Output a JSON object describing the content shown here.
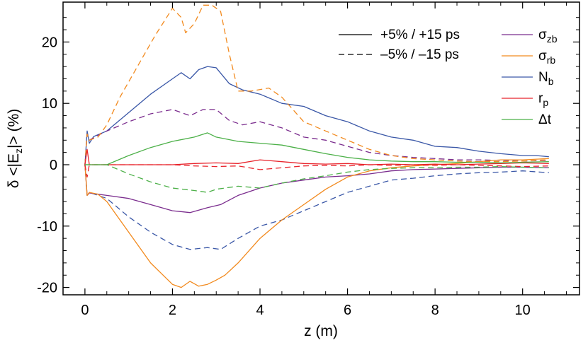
{
  "chart_data": {
    "type": "line",
    "xlabel": "z (m)",
    "ylabel_parts": [
      "δ <|E",
      "z",
      "|> (%)"
    ],
    "xlim": [
      -0.5,
      11.3
    ],
    "ylim": [
      -21.2,
      26.5
    ],
    "xticks": [
      0,
      2,
      4,
      6,
      8,
      10
    ],
    "yticks": [
      -20,
      -10,
      0,
      10,
      20
    ],
    "xtick_labels": [
      "0",
      "2",
      "4",
      "6",
      "8",
      "10"
    ],
    "ytick_labels": [
      "-20",
      "-10",
      "0",
      "10",
      "20"
    ],
    "grid": false,
    "legend_position": "top-right",
    "style_legend": [
      {
        "label": "+5% / +15 ps",
        "dash": "solid"
      },
      {
        "label": "–5% / –15 ps",
        "dash": "dashed"
      }
    ],
    "series_legend": [
      {
        "base": "σ",
        "sub": "zb",
        "color": "#7b2d8e"
      },
      {
        "base": "σ",
        "sub": "rb",
        "color": "#f28a1e"
      },
      {
        "base": "N",
        "sub": "b",
        "color": "#3a57a7"
      },
      {
        "base": "r",
        "sub": "p",
        "color": "#e8242c"
      },
      {
        "base": "Δt",
        "sub": "",
        "color": "#4cb048"
      }
    ],
    "series": [
      {
        "param": "N_b",
        "variation": "+5%",
        "color": "#3a57a7",
        "dash": "solid",
        "x": [
          0,
          0.05,
          0.1,
          0.2,
          0.5,
          1,
          1.5,
          2,
          2.2,
          2.4,
          2.6,
          2.8,
          3,
          3.3,
          3.6,
          4,
          4.5,
          5,
          5.5,
          6,
          6.5,
          7,
          7.5,
          8,
          8.5,
          9,
          9.5,
          10,
          10.3,
          10.6
        ],
        "y": [
          0,
          5.5,
          3.5,
          4.6,
          5.5,
          8.5,
          11.5,
          14,
          15,
          14,
          15.5,
          16,
          15.8,
          13.2,
          12.2,
          11.5,
          10,
          9.5,
          8,
          7,
          5.5,
          4.5,
          4,
          3,
          2.8,
          2.2,
          1.8,
          1.5,
          1.5,
          1.3
        ]
      },
      {
        "param": "N_b",
        "variation": "-5%",
        "color": "#3a57a7",
        "dash": "dashed",
        "x": [
          0,
          0.05,
          0.1,
          0.3,
          0.5,
          1,
          1.5,
          2,
          2.4,
          2.8,
          3.1,
          3.5,
          4,
          4.5,
          5,
          5.5,
          6,
          6.5,
          7,
          7.5,
          8,
          8.5,
          9,
          9.5,
          10,
          10.6
        ],
        "y": [
          0,
          -5,
          -4.5,
          -5,
          -5.5,
          -8.5,
          -11,
          -13,
          -13.8,
          -13.5,
          -13.8,
          -12,
          -10,
          -9,
          -7.5,
          -6,
          -4.5,
          -3.5,
          -2.5,
          -2.2,
          -1.8,
          -1.5,
          -1.3,
          -1.2,
          -1,
          -1.3
        ]
      },
      {
        "param": "σ_zb",
        "variation": "+5%",
        "color": "#7b2d8e",
        "dash": "solid",
        "x": [
          0,
          0.05,
          0.1,
          0.3,
          0.5,
          1,
          1.5,
          2,
          2.4,
          2.8,
          3.1,
          3.5,
          4,
          4.5,
          5,
          5.5,
          6,
          6.5,
          7,
          7.5,
          8,
          8.5,
          9,
          9.5,
          10,
          10.6
        ],
        "y": [
          0,
          -5,
          -4.6,
          -4.8,
          -5,
          -5.5,
          -6.5,
          -7.5,
          -7.8,
          -7,
          -6.5,
          -5,
          -3.8,
          -3,
          -2.5,
          -2,
          -1.8,
          -1.5,
          -1,
          -0.8,
          -0.7,
          -0.6,
          -0.5,
          -0.4,
          -0.4,
          -0.5
        ]
      },
      {
        "param": "σ_zb",
        "variation": "-5%",
        "color": "#7b2d8e",
        "dash": "dashed",
        "x": [
          0,
          0.05,
          0.1,
          0.3,
          0.5,
          1,
          1.5,
          2,
          2.2,
          2.4,
          2.7,
          3,
          3.3,
          3.6,
          4,
          4.5,
          5,
          5.5,
          6,
          6.5,
          7,
          7.5,
          8,
          8.5,
          9,
          9.5,
          10,
          10.6
        ],
        "y": [
          0,
          5,
          4,
          4.8,
          5.5,
          7,
          8.3,
          9,
          8.5,
          8,
          9,
          9,
          7.2,
          6.5,
          7,
          6,
          4.5,
          4,
          3,
          2,
          1.5,
          1.2,
          1,
          0.8,
          0.8,
          0.7,
          0.6,
          0.7
        ]
      },
      {
        "param": "σ_rb",
        "variation": "+5%",
        "color": "#f28a1e",
        "dash": "solid",
        "x": [
          0,
          0.05,
          0.1,
          0.3,
          0.5,
          1,
          1.5,
          2,
          2.2,
          2.4,
          2.6,
          2.8,
          3,
          3.2,
          3.5,
          4,
          4.5,
          5,
          5.5,
          6,
          6.5,
          7,
          7.5,
          8,
          8.5,
          9,
          9.5,
          10,
          10.6
        ],
        "y": [
          0,
          -5,
          -4.5,
          -4.8,
          -6,
          -11,
          -16,
          -19.5,
          -20,
          -19,
          -19.8,
          -19.5,
          -18.8,
          -18,
          -16,
          -12,
          -9,
          -6.5,
          -4,
          -2,
          -1,
          -0.5,
          -0.2,
          0,
          0.2,
          0.5,
          0.8,
          0.8,
          1
        ]
      },
      {
        "param": "σ_rb",
        "variation": "-5%",
        "color": "#f28a1e",
        "dash": "dashed",
        "x": [
          0,
          0.05,
          0.1,
          0.3,
          0.5,
          0.8,
          1.2,
          1.6,
          2,
          2.2,
          2.3,
          2.5,
          2.7,
          2.9,
          3.1,
          3.3,
          3.5,
          3.8,
          4.2,
          4.5,
          5,
          5.5,
          6,
          6.5,
          7,
          7.5,
          8,
          8.5,
          9,
          9.5,
          10,
          10.6
        ],
        "y": [
          0,
          5,
          4,
          4.5,
          6.5,
          11,
          16,
          21,
          25.5,
          24,
          21.5,
          23,
          26,
          26,
          25,
          18,
          12,
          12,
          12.5,
          11,
          7,
          5.5,
          4,
          2.5,
          1.5,
          1,
          0.8,
          0.6,
          0.5,
          0.5,
          0.6,
          0.8
        ]
      },
      {
        "param": "r_p",
        "variation": "+5%",
        "color": "#e8242c",
        "dash": "solid",
        "x": [
          0,
          0.05,
          0.1,
          0.2,
          0.3,
          0.5,
          1,
          1.5,
          2,
          2.5,
          3,
          3.5,
          4,
          4.5,
          5,
          5.5,
          6,
          6.5,
          7,
          7.5,
          8,
          8.5,
          9,
          9.5,
          10,
          10.6
        ],
        "y": [
          0,
          2.5,
          0,
          0,
          0,
          0,
          0,
          0,
          0,
          0.2,
          0.3,
          0.2,
          0.8,
          0.5,
          0.2,
          0.1,
          0.2,
          0,
          0.1,
          0,
          0.1,
          0,
          0.1,
          0.2,
          0.3,
          0.2
        ]
      },
      {
        "param": "r_p",
        "variation": "-5%",
        "color": "#e8242c",
        "dash": "dashed",
        "x": [
          0,
          0.05,
          0.1,
          0.2,
          0.3,
          0.5,
          1,
          1.5,
          2,
          2.5,
          3,
          3.5,
          4,
          4.5,
          5,
          5.5,
          6,
          6.5,
          7,
          7.5,
          8,
          8.5,
          9,
          9.5,
          10,
          10.6
        ],
        "y": [
          0,
          -2,
          0,
          0,
          0,
          0,
          0,
          0,
          0,
          -0.2,
          -0.3,
          -0.2,
          -0.8,
          -0.5,
          -0.2,
          -0.1,
          -0.2,
          0,
          -0.1,
          0,
          -0.1,
          0,
          -0.1,
          -0.2,
          -0.3,
          -0.2
        ]
      },
      {
        "param": "Δt",
        "variation": "+15 ps",
        "color": "#4cb048",
        "dash": "solid",
        "x": [
          0,
          0.1,
          0.3,
          0.5,
          1,
          1.5,
          2,
          2.5,
          2.8,
          3,
          3.5,
          4,
          4.5,
          5,
          5.5,
          6,
          6.5,
          7,
          7.5,
          8,
          8.5,
          9,
          9.5,
          10,
          10.6
        ],
        "y": [
          0,
          0,
          0,
          0,
          1.5,
          2.8,
          3.8,
          4.5,
          5.2,
          4.5,
          3.8,
          3.5,
          3.2,
          2.5,
          1.8,
          1.2,
          0.8,
          0.6,
          0.5,
          0.5,
          0.4,
          0.4,
          0.3,
          0.4,
          0.5
        ]
      },
      {
        "param": "Δt",
        "variation": "-15 ps",
        "color": "#4cb048",
        "dash": "dashed",
        "x": [
          0,
          0.1,
          0.3,
          0.5,
          1,
          1.5,
          2,
          2.5,
          2.8,
          3,
          3.5,
          4,
          4.5,
          5,
          5.5,
          6,
          6.5,
          7,
          7.5,
          8,
          8.5,
          9,
          9.5,
          10,
          10.6
        ],
        "y": [
          0,
          0,
          0,
          0,
          -1.5,
          -2.8,
          -3.8,
          -4.2,
          -4.5,
          -4,
          -3.5,
          -3.8,
          -3,
          -2.3,
          -1.8,
          -1.2,
          -0.8,
          -0.6,
          -0.5,
          -0.5,
          -0.4,
          -0.4,
          -0.3,
          -0.4,
          -0.5
        ]
      }
    ]
  }
}
